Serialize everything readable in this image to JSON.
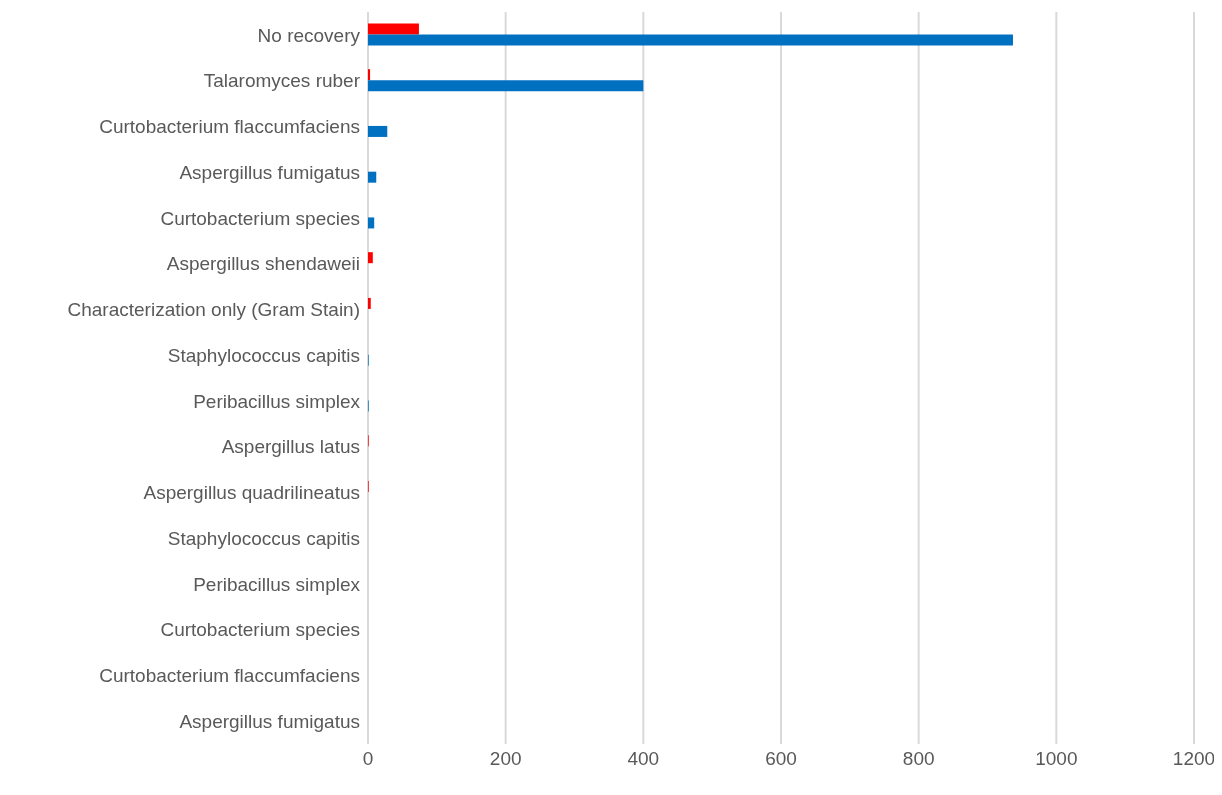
{
  "chart_data": {
    "type": "bar",
    "orientation": "horizontal",
    "categories": [
      "No recovery",
      "Talaromyces ruber",
      "Curtobacterium flaccumfaciens",
      "Aspergillus fumigatus",
      "Curtobacterium species",
      "Aspergillus shendaweii",
      "Characterization only (Gram Stain)",
      "Staphylococcus capitis",
      "Peribacillus simplex",
      "Aspergillus latus",
      "Aspergillus quadrilineatus",
      "Staphylococcus capitis",
      "Peribacillus simplex",
      "Curtobacterium species",
      "Curtobacterium flaccumfaciens",
      "Aspergillus fumigatus"
    ],
    "series": [
      {
        "color": "#ff0000",
        "values": [
          74,
          3,
          0,
          0,
          0,
          7,
          4,
          0,
          0,
          1,
          1,
          0,
          0,
          0,
          0,
          0
        ]
      },
      {
        "color": "#0070c0",
        "values": [
          937,
          400,
          28,
          12,
          9,
          0,
          0,
          1,
          1,
          0,
          0,
          0,
          0,
          0,
          0,
          0
        ]
      }
    ],
    "xlim": [
      0,
      1200
    ],
    "xticks": [
      0,
      200,
      400,
      600,
      800,
      1000,
      1200
    ],
    "grid": "x",
    "legend": false
  }
}
